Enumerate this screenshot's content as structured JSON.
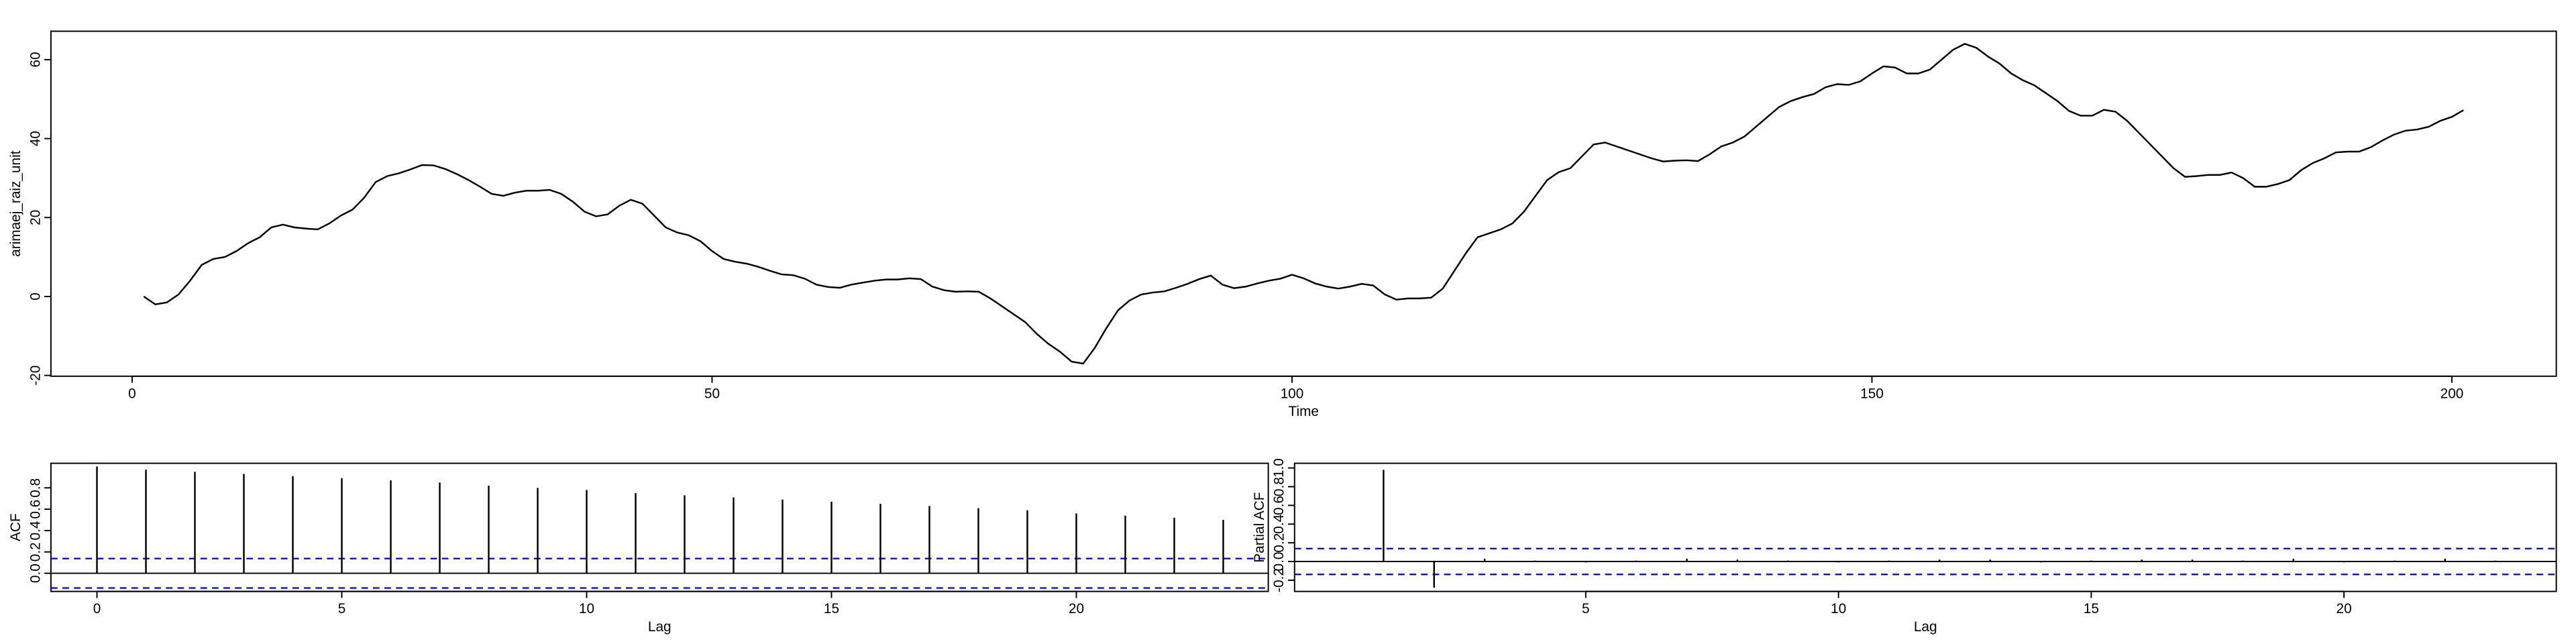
{
  "chart_data": [
    {
      "type": "line",
      "xlabel": "Time",
      "ylabel": "arimaej_raiz_unit",
      "color": "#000000",
      "x": [
        1,
        2,
        3,
        4,
        5,
        6,
        7,
        8,
        9,
        10,
        11,
        12,
        13,
        14,
        15,
        16,
        17,
        18,
        19,
        20,
        21,
        22,
        23,
        24,
        25,
        26,
        27,
        28,
        29,
        30,
        31,
        32,
        33,
        34,
        35,
        36,
        37,
        38,
        39,
        40,
        41,
        42,
        43,
        44,
        45,
        46,
        47,
        48,
        49,
        50,
        51,
        52,
        53,
        54,
        55,
        56,
        57,
        58,
        59,
        60,
        61,
        62,
        63,
        64,
        65,
        66,
        67,
        68,
        69,
        70,
        71,
        72,
        73,
        74,
        75,
        76,
        77,
        78,
        79,
        80,
        81,
        82,
        83,
        84,
        85,
        86,
        87,
        88,
        89,
        90,
        91,
        92,
        93,
        94,
        95,
        96,
        97,
        98,
        99,
        100,
        101,
        102,
        103,
        104,
        105,
        106,
        107,
        108,
        109,
        110,
        111,
        112,
        113,
        114,
        115,
        116,
        117,
        118,
        119,
        120,
        121,
        122,
        123,
        124,
        125,
        126,
        127,
        128,
        129,
        130,
        131,
        132,
        133,
        134,
        135,
        136,
        137,
        138,
        139,
        140,
        141,
        142,
        143,
        144,
        145,
        146,
        147,
        148,
        149,
        150,
        151,
        152,
        153,
        154,
        155,
        156,
        157,
        158,
        159,
        160,
        161,
        162,
        163,
        164,
        165,
        166,
        167,
        168,
        169,
        170,
        171,
        172,
        173,
        174,
        175,
        176,
        177,
        178,
        179,
        180,
        181,
        182,
        183,
        184,
        185,
        186,
        187,
        188,
        189,
        190,
        191,
        192,
        193,
        194,
        195,
        196,
        197,
        198,
        199,
        200,
        201
      ],
      "values": [
        0,
        -2,
        -1.5,
        0.5,
        4,
        8,
        9.5,
        10,
        11.5,
        13.5,
        15,
        17.5,
        18.2,
        17.5,
        17.2,
        17,
        18.5,
        20.5,
        22,
        25,
        29,
        30.5,
        31.2,
        32.2,
        33.3,
        33.2,
        32.3,
        31,
        29.5,
        27.8,
        26,
        25.5,
        26.3,
        26.8,
        26.8,
        27,
        26,
        24,
        21.5,
        20.3,
        20.8,
        23,
        24.5,
        23.5,
        20.5,
        17.5,
        16.2,
        15.5,
        14,
        11.5,
        9.5,
        8.8,
        8.3,
        7.5,
        6.5,
        5.6,
        5.4,
        4.5,
        3,
        2.4,
        2.2,
        3,
        3.5,
        4,
        4.3,
        4.3,
        4.6,
        4.4,
        2.5,
        1.6,
        1.2,
        1.3,
        1.2,
        -0.5,
        -2.5,
        -4.5,
        -6.5,
        -9.5,
        -12,
        -14,
        -16.5,
        -17,
        -13,
        -8,
        -3.5,
        -1,
        0.5,
        1,
        1.3,
        2.2,
        3.2,
        4.4,
        5.3,
        3,
        2.1,
        2.5,
        3.3,
        4,
        4.5,
        5.5,
        4.6,
        3.3,
        2.5,
        2,
        2.5,
        3.2,
        2.8,
        0.5,
        -0.8,
        -0.5,
        -0.5,
        -0.3,
        2,
        6.5,
        11,
        15,
        16,
        17,
        18.5,
        21.5,
        25.5,
        29.5,
        31.5,
        32.5,
        35.5,
        38.5,
        39,
        38,
        37,
        36,
        35,
        34.2,
        34.4,
        34.5,
        34.3,
        36,
        38,
        39,
        40.5,
        43,
        45.5,
        48,
        49.5,
        50.5,
        51.3,
        53,
        53.8,
        53.6,
        54.5,
        56.5,
        58.3,
        58,
        56.5,
        56.5,
        57.5,
        60,
        62.5,
        64,
        63,
        60.8,
        59,
        56.5,
        54.8,
        53.5,
        51.5,
        49.5,
        47,
        45.8,
        45.8,
        47.3,
        46.8,
        44.5,
        41.5,
        38.5,
        35.5,
        32.5,
        30.3,
        30.5,
        30.8,
        30.8,
        31.4,
        30,
        27.8,
        27.8,
        28.5,
        29.5,
        32,
        33.8,
        35,
        36.5,
        36.7,
        36.7,
        37.8,
        39.5,
        41,
        42,
        42.3,
        43,
        44.5,
        45.5,
        47.2
      ],
      "xlim": [
        -7,
        209
      ],
      "ylim": [
        -20.2,
        67.2
      ],
      "xticks": [
        0,
        50,
        100,
        150,
        200
      ],
      "yticks": [
        -20,
        0,
        20,
        40,
        60
      ]
    },
    {
      "type": "bar",
      "xlabel": "Lag",
      "ylabel": "ACF",
      "color": "#000000",
      "conf_color": "#0000cc",
      "x": [
        0,
        1,
        2,
        3,
        4,
        5,
        6,
        7,
        8,
        9,
        10,
        11,
        12,
        13,
        14,
        15,
        16,
        17,
        18,
        19,
        20,
        21,
        22,
        23
      ],
      "values": [
        1,
        0.97,
        0.95,
        0.93,
        0.91,
        0.89,
        0.87,
        0.85,
        0.82,
        0.8,
        0.78,
        0.75,
        0.73,
        0.71,
        0.69,
        0.67,
        0.65,
        0.63,
        0.61,
        0.59,
        0.56,
        0.54,
        0.52,
        0.5
      ],
      "conf_limits": [
        -0.138,
        0.138
      ],
      "xlim": [
        -0.94,
        23.92
      ],
      "ylim": [
        -0.17,
        1.03
      ],
      "xticks": [
        0,
        5,
        10,
        15,
        20
      ],
      "yticks": [
        {
          "value": 0,
          "label": "0.0"
        },
        {
          "value": 0.2,
          "label": "0.2"
        },
        {
          "value": 0.4,
          "label": "0.4"
        },
        {
          "value": 0.6,
          "label": "0.6"
        },
        {
          "value": 0.8,
          "label": "0.8"
        }
      ]
    },
    {
      "type": "bar",
      "xlabel": "Lag",
      "ylabel": "Partial ACF",
      "color": "#000000",
      "conf_color": "#0000cc",
      "x": [
        1,
        2,
        3,
        4,
        5,
        6,
        7,
        8,
        9,
        10,
        11,
        12,
        13,
        14,
        15,
        16,
        17,
        18,
        19,
        20,
        21,
        22,
        23
      ],
      "values": [
        0.98,
        -0.28,
        0.03,
        0.01,
        -0.01,
        0.01,
        0.03,
        0.02,
        0.01,
        -0.01,
        0.01,
        0.02,
        0.02,
        -0.01,
        0.01,
        0.02,
        0.02,
        0.01,
        0.03,
        -0.01,
        0.01,
        0.03,
        0.01
      ],
      "conf_limits": [
        -0.138,
        0.138
      ],
      "xlim": [
        -0.76,
        24.2
      ],
      "ylim": [
        -0.32,
        1.05
      ],
      "xticks": [
        5,
        10,
        15,
        20
      ],
      "yticks": [
        {
          "value": -0.2,
          "label": "-0.2"
        },
        {
          "value": 0,
          "label": "0.0"
        },
        {
          "value": 0.2,
          "label": "0.2"
        },
        {
          "value": 0.4,
          "label": "0.4"
        },
        {
          "value": 0.6,
          "label": "0.6"
        },
        {
          "value": 0.8,
          "label": "0.8"
        },
        {
          "value": 1,
          "label": "1.0"
        }
      ]
    }
  ]
}
